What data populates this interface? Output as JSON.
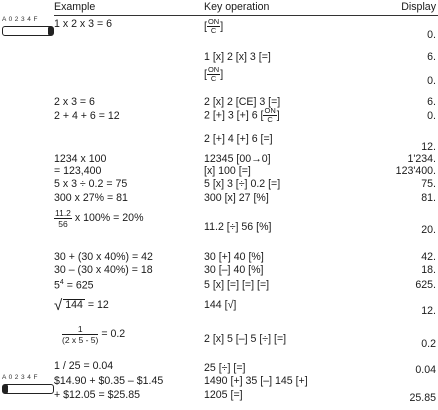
{
  "header": {
    "example": "Example",
    "key": "Key operation",
    "display": "Display"
  },
  "selector": {
    "label": "A 0 2 3 4 F",
    "setting_1": "A",
    "setting_2": "A"
  },
  "rows": {
    "r1": {
      "example": "1 x 2 x 3 = 6",
      "key_pre": "[",
      "key_post": "]",
      "display": "0."
    },
    "r2": {
      "key": "1 [x] 2 [x] 3 [=]",
      "display": "6."
    },
    "r3": {
      "key_pre": "[",
      "key_post": "]",
      "display": "0."
    },
    "r4": {
      "example": "2 x 3 = 6",
      "key": "2 [x] 2 [CE] 3 [=]",
      "display": "6."
    },
    "r5": {
      "example": "2 + 4 + 6 = 12",
      "key_pre": "2 [+] 3 [+] 6 [",
      "key_post": "]",
      "display": "0."
    },
    "r6": {
      "key": "2 [+] 4 [+] 6 [=]",
      "display": "12."
    },
    "r7": {
      "example": "1234 x 100",
      "key": "12345 [00→0]",
      "display": "1'234."
    },
    "r8": {
      "example": "= 123,400",
      "key": "[x] 100 [=]",
      "display": "123'400."
    },
    "r9": {
      "example": "5 x 3 ÷ 0.2 = 75",
      "key": "5 [x] 3 [÷] 0.2 [=]",
      "display": "75."
    },
    "r10": {
      "example": "300 x 27% = 81",
      "key": "300 [x] 27 [%]",
      "display": "81."
    },
    "r11": {
      "frac_num": "11.2",
      "frac_den": "56",
      "example_post": "x 100% = 20%",
      "key": "11.2 [÷] 56 [%]",
      "display": "20."
    },
    "r12": {
      "example": "30 + (30 x 40%) = 42",
      "key": "30 [+] 40 [%]",
      "display": "42."
    },
    "r13": {
      "example": "30 – (30 x 40%) = 18",
      "key": "30 [–] 40 [%]",
      "display": "18."
    },
    "r14": {
      "base": "5",
      "exp": "4",
      "example_post": " = 625",
      "key": "5 [x] [=] [=] [=]",
      "display": "625."
    },
    "r15": {
      "radicand": "144",
      "example_post": " = 12",
      "key_pre": "144 [",
      "key_post": "]",
      "display": "12."
    },
    "r16": {
      "frac_num": "1",
      "frac_den": "(2 x 5 - 5)",
      "example_post": "= 0.2",
      "key": "2 [x] 5 [–] 5 [÷] [=]",
      "display": "0.2"
    },
    "r17": {
      "example": "1 / 25 = 0.04",
      "key": "25 [÷] [=]",
      "display": "0.04"
    },
    "r18": {
      "example": "$14.90 + $0.35 – $1.45",
      "key": "1490 [+] 35 [–] 145 [+]"
    },
    "r19": {
      "example": "+ $12.05 = $25.85",
      "key": "1205 [=]",
      "display": "25.85"
    }
  },
  "key_symbols": {
    "on": "ON",
    "c": "C",
    "sqrt": "√"
  }
}
